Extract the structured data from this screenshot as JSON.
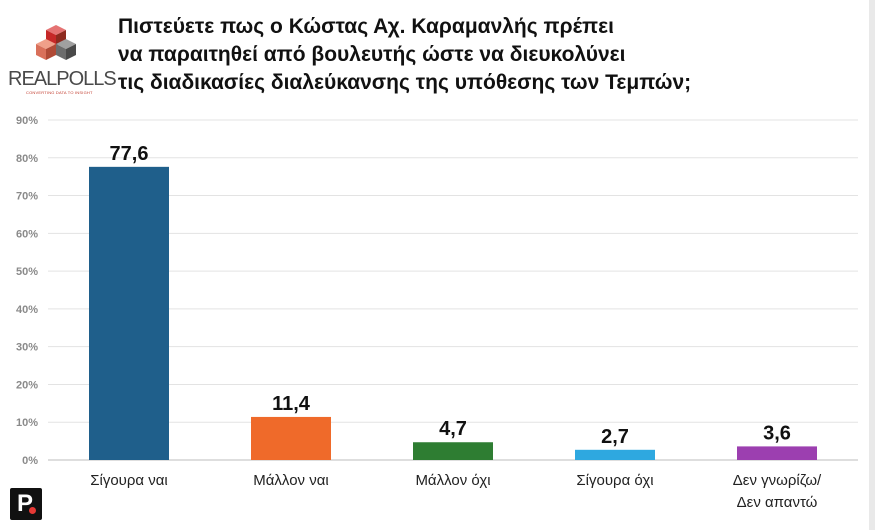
{
  "header": {
    "title_lines": [
      "Πιστεύετε πως ο Κώστας Αχ. Καραμανλής πρέπει",
      "να παραιτηθεί από βουλευτής ώστε να διευκολύνει",
      "τις διαδικασίες διαλεύκανσης της υπόθεσης των Τεμπών;"
    ]
  },
  "logo": {
    "text": "REALPOLLS",
    "tagline": "CONVERTING DATA TO INSIGHT"
  },
  "chart_data": {
    "type": "bar",
    "title": "Πιστεύετε πως ο Κώστας Αχ. Καραμανλής πρέπει να παραιτηθεί από βουλευτής ώστε να διευκολύνει τις διαδικασίες διαλεύκανσης της υπόθεσης των Τεμπών;",
    "categories": [
      [
        "Σίγουρα ναι"
      ],
      [
        "Μάλλον ναι"
      ],
      [
        "Μάλλον όχι"
      ],
      [
        "Σίγουρα όχι"
      ],
      [
        "Δεν γνωρίζω/",
        "Δεν απαντώ"
      ]
    ],
    "values": [
      77.6,
      11.4,
      4.7,
      2.7,
      3.6
    ],
    "value_labels": [
      "77,6",
      "11,4",
      "4,7",
      "2,7",
      "3,6"
    ],
    "colors": [
      "#1f5f8b",
      "#ef6a2a",
      "#2e7d32",
      "#2ea8e0",
      "#9c3fb0"
    ],
    "ylim": [
      0,
      90
    ],
    "yticks": [
      0,
      10,
      20,
      30,
      40,
      50,
      60,
      70,
      80,
      90
    ],
    "ytick_labels": [
      "0%",
      "10%",
      "20%",
      "30%",
      "40%",
      "50%",
      "60%",
      "70%",
      "80%",
      "90%"
    ],
    "grid": true,
    "xlabel": "",
    "ylabel": ""
  }
}
